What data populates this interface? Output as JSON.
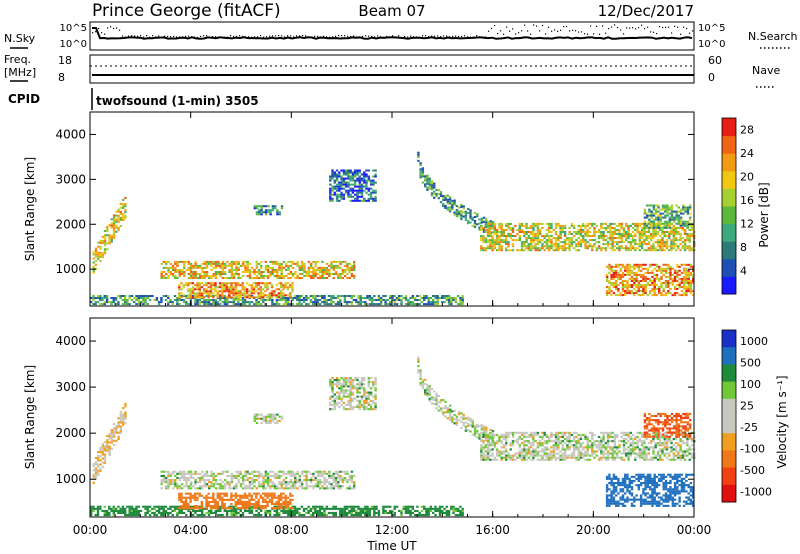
{
  "header": {
    "title": "Prince George (fitACF)",
    "beam": "Beam 07",
    "date": "12/Dec/2017"
  },
  "noise_panel": {
    "left_label": "N.Sky",
    "right_label": "N.Search",
    "left_ticks": [
      "10^5",
      "10^0"
    ],
    "right_ticks": [
      "10^5",
      "10^0"
    ]
  },
  "freq_panel": {
    "left_label_line1": "Freq.",
    "left_label_line2": "[MHz]",
    "left_ticks": [
      "18",
      "8"
    ],
    "right_label": "Nave",
    "right_ticks": [
      "60",
      "0"
    ]
  },
  "cpid": {
    "label": "CPID",
    "program": "twofsound (1-min) 3505"
  },
  "colors": {
    "power": [
      "#1a1aff",
      "#1f4fb4",
      "#2c7a7a",
      "#3ca87c",
      "#5cb83c",
      "#a6cf32",
      "#f0c814",
      "#f29a14",
      "#f06414",
      "#e61e14"
    ],
    "velocity": [
      "#1a2ec8",
      "#1f6fbf",
      "#1e8a3c",
      "#70c838",
      "#c8c8c0",
      "#c8c8c0",
      "#f0a020",
      "#f07818",
      "#f04014",
      "#e01010"
    ],
    "velocity_ground": "#c8c8c0"
  },
  "chart_data": [
    {
      "type": "heatmap",
      "panel": "power",
      "xlabel": "",
      "ylabel": "Slant Range [km]",
      "x_ticks": [
        "00:00",
        "04:00",
        "08:00",
        "12:00",
        "16:00",
        "20:00",
        "00:00"
      ],
      "x_range_hours": [
        0,
        24
      ],
      "y_ticks": [
        1000,
        2000,
        3000,
        4000
      ],
      "ylim": [
        180,
        4500
      ],
      "colorbar": {
        "label": "Power [dB]",
        "ticks": [
          4,
          8,
          12,
          16,
          20,
          24,
          28
        ],
        "range": [
          0,
          30
        ]
      },
      "echo_regions": [
        {
          "t0": 0.1,
          "t1": 1.4,
          "r0": 1150,
          "r1": 2400,
          "level": 18,
          "shape": "slope-up"
        },
        {
          "t0": 0.0,
          "t1": 14.8,
          "r0": 200,
          "r1": 420,
          "level": 10,
          "shape": "band"
        },
        {
          "t0": 2.8,
          "t1": 10.5,
          "r0": 780,
          "r1": 1180,
          "level": 20,
          "shape": "band"
        },
        {
          "t0": 3.5,
          "t1": 8.0,
          "r0": 350,
          "r1": 700,
          "level": 22,
          "shape": "band"
        },
        {
          "t0": 6.5,
          "t1": 7.6,
          "r0": 2200,
          "r1": 2400,
          "level": 8,
          "shape": "patch"
        },
        {
          "t0": 9.5,
          "t1": 11.3,
          "r0": 2500,
          "r1": 3200,
          "level": 6,
          "shape": "patch"
        },
        {
          "t0": 13.0,
          "t1": 16.0,
          "r0": 1900,
          "r1": 3500,
          "level": 10,
          "shape": "arc"
        },
        {
          "t0": 15.5,
          "t1": 24.0,
          "r0": 1400,
          "r1": 2000,
          "level": 18,
          "shape": "band"
        },
        {
          "t0": 20.5,
          "t1": 24.0,
          "r0": 400,
          "r1": 1100,
          "level": 22,
          "shape": "band"
        },
        {
          "t0": 22.0,
          "t1": 23.8,
          "r0": 1900,
          "r1": 2400,
          "level": 12,
          "shape": "patch"
        }
      ]
    },
    {
      "type": "heatmap",
      "panel": "velocity",
      "xlabel": "Time UT",
      "ylabel": "Slant Range [km]",
      "x_ticks": [
        "00:00",
        "04:00",
        "08:00",
        "12:00",
        "16:00",
        "20:00",
        "00:00"
      ],
      "x_range_hours": [
        0,
        24
      ],
      "y_ticks": [
        1000,
        2000,
        3000,
        4000
      ],
      "ylim": [
        180,
        4500
      ],
      "colorbar": {
        "label": "Velocity [m s⁻¹]",
        "ticks": [
          "1000",
          "500",
          "100",
          "25",
          "-25",
          "-100",
          "-500",
          "-1000"
        ]
      },
      "echo_regions": [
        {
          "t0": 0.1,
          "t1": 1.4,
          "r0": 1150,
          "r1": 2400,
          "level": -25,
          "shape": "slope-up"
        },
        {
          "t0": 0.0,
          "t1": 14.8,
          "r0": 200,
          "r1": 420,
          "level": 50,
          "shape": "band"
        },
        {
          "t0": 2.8,
          "t1": 10.5,
          "r0": 780,
          "r1": 1180,
          "level": 0,
          "shape": "band"
        },
        {
          "t0": 3.5,
          "t1": 8.0,
          "r0": 350,
          "r1": 700,
          "level": -150,
          "shape": "band"
        },
        {
          "t0": 6.5,
          "t1": 7.6,
          "r0": 2200,
          "r1": 2400,
          "level": 0,
          "shape": "patch"
        },
        {
          "t0": 9.5,
          "t1": 11.3,
          "r0": 2500,
          "r1": 3200,
          "level": 0,
          "shape": "patch"
        },
        {
          "t0": 13.0,
          "t1": 16.0,
          "r0": 1900,
          "r1": 3500,
          "level": 0,
          "shape": "arc"
        },
        {
          "t0": 15.5,
          "t1": 24.0,
          "r0": 1400,
          "r1": 2000,
          "level": 0,
          "shape": "band"
        },
        {
          "t0": 20.5,
          "t1": 24.0,
          "r0": 400,
          "r1": 1100,
          "level": 150,
          "shape": "band"
        },
        {
          "t0": 22.0,
          "t1": 23.8,
          "r0": 1900,
          "r1": 2400,
          "level": -500,
          "shape": "patch"
        }
      ]
    }
  ]
}
